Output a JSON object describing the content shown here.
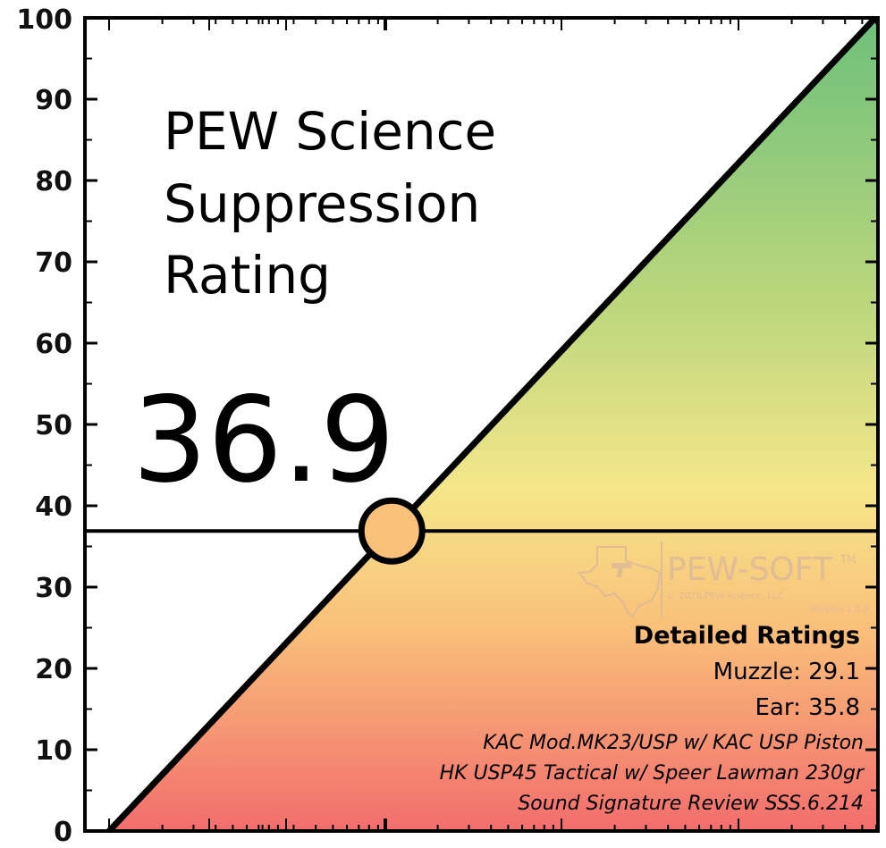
{
  "chart_data": {
    "type": "line",
    "title_lines": [
      "PEW Science",
      "Suppression",
      "Rating"
    ],
    "score": "36.9",
    "score_value": 36.9,
    "ylim": [
      0,
      100
    ],
    "y_ticks": [
      0,
      10,
      20,
      30,
      40,
      50,
      60,
      70,
      80,
      90,
      100
    ],
    "y_tick_labels": [
      "0",
      "10",
      "20",
      "30",
      "40",
      "50",
      "60",
      "70",
      "80",
      "90",
      "100"
    ],
    "diagonal": {
      "y_start": 0,
      "y_end": 100
    },
    "grid": false,
    "detailed_ratings": {
      "heading": "Detailed Ratings",
      "muzzle": "Muzzle: 29.1",
      "ear": "Ear: 35.8",
      "lines": [
        "KAC Mod.MK23/USP w/ KAC USP Piston",
        "HK USP45 Tactical w/ Speer Lawman 230gr",
        "Sound Signature Review SSS.6.214"
      ]
    },
    "watermark": {
      "brand": "PEW-SOFT",
      "tm": "TM",
      "copyright": "© 2020 PEW Science, LLC",
      "version": "Version 1.0.2"
    },
    "colors": {
      "top": "#6dc07b",
      "upper_mid": "#b7d57c",
      "mid": "#f5e68a",
      "lower_mid": "#f9c07a",
      "bottom": "#f26d6d",
      "marker_fill": "#f9c17a",
      "line": "#000000"
    }
  }
}
